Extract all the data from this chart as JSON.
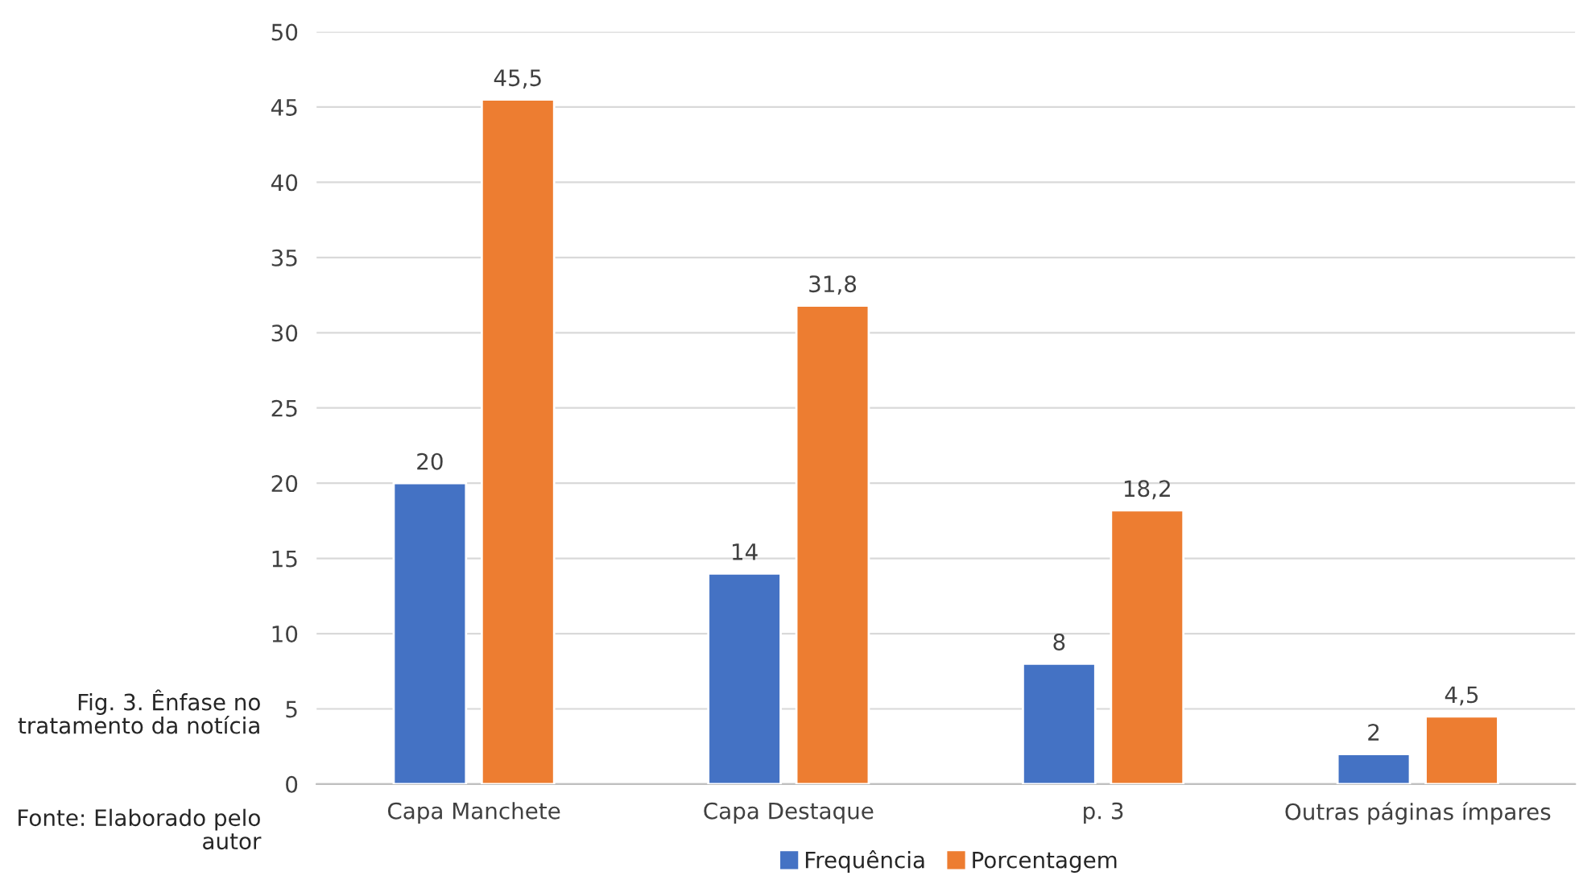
{
  "chart_data": {
    "type": "bar",
    "title": "Fig. 3. Ênfase no tratamento da notícia",
    "annotations": [
      "Fonte: Elaborado pelo autor"
    ],
    "categories": [
      "Capa Manchete",
      "Capa Destaque",
      "p. 3",
      "Outras páginas ímpares"
    ],
    "series": [
      {
        "name": "Frequência",
        "color": "#4472c4",
        "values": [
          20,
          14,
          8,
          2
        ]
      },
      {
        "name": "Porcentagem",
        "color": "#ed7d31",
        "values": [
          45.5,
          31.8,
          18.2,
          4.5
        ]
      }
    ],
    "value_labels": [
      [
        "20",
        "14",
        "8",
        "2"
      ],
      [
        "45,5",
        "31,8",
        "18,2",
        "4,5"
      ]
    ],
    "ylim": [
      0,
      50
    ],
    "yticks": [
      0,
      5,
      10,
      15,
      20,
      25,
      30,
      35,
      40,
      45,
      50
    ],
    "grid": "y",
    "legend": "bottom"
  }
}
